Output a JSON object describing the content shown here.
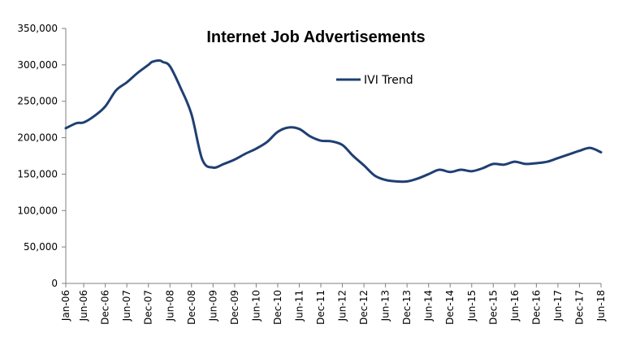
{
  "chart_data": {
    "type": "line",
    "title": "Internet Job Advertisements",
    "xlabel": "",
    "ylabel": "",
    "ylim": [
      0,
      350000
    ],
    "yticks": [
      "0",
      "50,000",
      "100,000",
      "150,000",
      "200,000",
      "250,000",
      "300,000",
      "350,000"
    ],
    "ytick_values": [
      0,
      50000,
      100000,
      150000,
      200000,
      250000,
      300000,
      350000
    ],
    "x_tick_labels": [
      "Jan-06",
      "Jun-06",
      "Dec-06",
      "Jun-07",
      "Dec-07",
      "Jun-08",
      "Dec-08",
      "Jun-09",
      "Dec-09",
      "Jun-10",
      "Dec-10",
      "Jun-11",
      "Dec-11",
      "Jun-12",
      "Dec-12",
      "Jun-13",
      "Dec-13",
      "Jun-14",
      "Dec-14",
      "Jun-15",
      "Dec-15",
      "Jun-16",
      "Dec-16",
      "Jun-17",
      "Dec-17",
      "Jun-18"
    ],
    "x_tick_months": [
      "2006-01",
      "2006-06",
      "2006-12",
      "2007-06",
      "2007-12",
      "2008-06",
      "2008-12",
      "2009-06",
      "2009-12",
      "2010-06",
      "2010-12",
      "2011-06",
      "2011-12",
      "2012-06",
      "2012-12",
      "2013-06",
      "2013-12",
      "2014-06",
      "2014-12",
      "2015-06",
      "2015-12",
      "2016-06",
      "2016-12",
      "2017-06",
      "2017-12",
      "2018-06"
    ],
    "grid": false,
    "legend_position": "top-center",
    "series": [
      {
        "name": "IVI Trend",
        "color": "#1F3F73",
        "x": [
          "2006-01",
          "2006-04",
          "2006-06",
          "2006-09",
          "2006-12",
          "2007-03",
          "2007-06",
          "2007-09",
          "2007-12",
          "2008-01",
          "2008-03",
          "2008-04",
          "2008-06",
          "2008-09",
          "2008-12",
          "2009-03",
          "2009-06",
          "2009-09",
          "2009-12",
          "2010-03",
          "2010-06",
          "2010-09",
          "2010-12",
          "2011-03",
          "2011-06",
          "2011-09",
          "2011-12",
          "2012-03",
          "2012-06",
          "2012-09",
          "2012-12",
          "2013-03",
          "2013-06",
          "2013-09",
          "2013-12",
          "2014-03",
          "2014-06",
          "2014-09",
          "2014-12",
          "2015-03",
          "2015-06",
          "2015-09",
          "2015-12",
          "2016-03",
          "2016-06",
          "2016-09",
          "2016-12",
          "2017-03",
          "2017-06",
          "2017-09",
          "2017-12",
          "2018-03",
          "2018-06"
        ],
        "values": [
          213000,
          220000,
          221000,
          230000,
          243000,
          265000,
          276000,
          289000,
          300000,
          304000,
          306000,
          304000,
          298000,
          268000,
          232000,
          170000,
          159000,
          164000,
          170000,
          178000,
          185000,
          194000,
          208000,
          214000,
          212000,
          202000,
          196000,
          195000,
          190000,
          175000,
          162000,
          148000,
          142000,
          140000,
          140000,
          144000,
          150000,
          156000,
          153000,
          156000,
          154000,
          158000,
          164000,
          163000,
          167000,
          164000,
          165000,
          167000,
          172000,
          177000,
          182000,
          186000,
          180000
        ]
      }
    ]
  }
}
